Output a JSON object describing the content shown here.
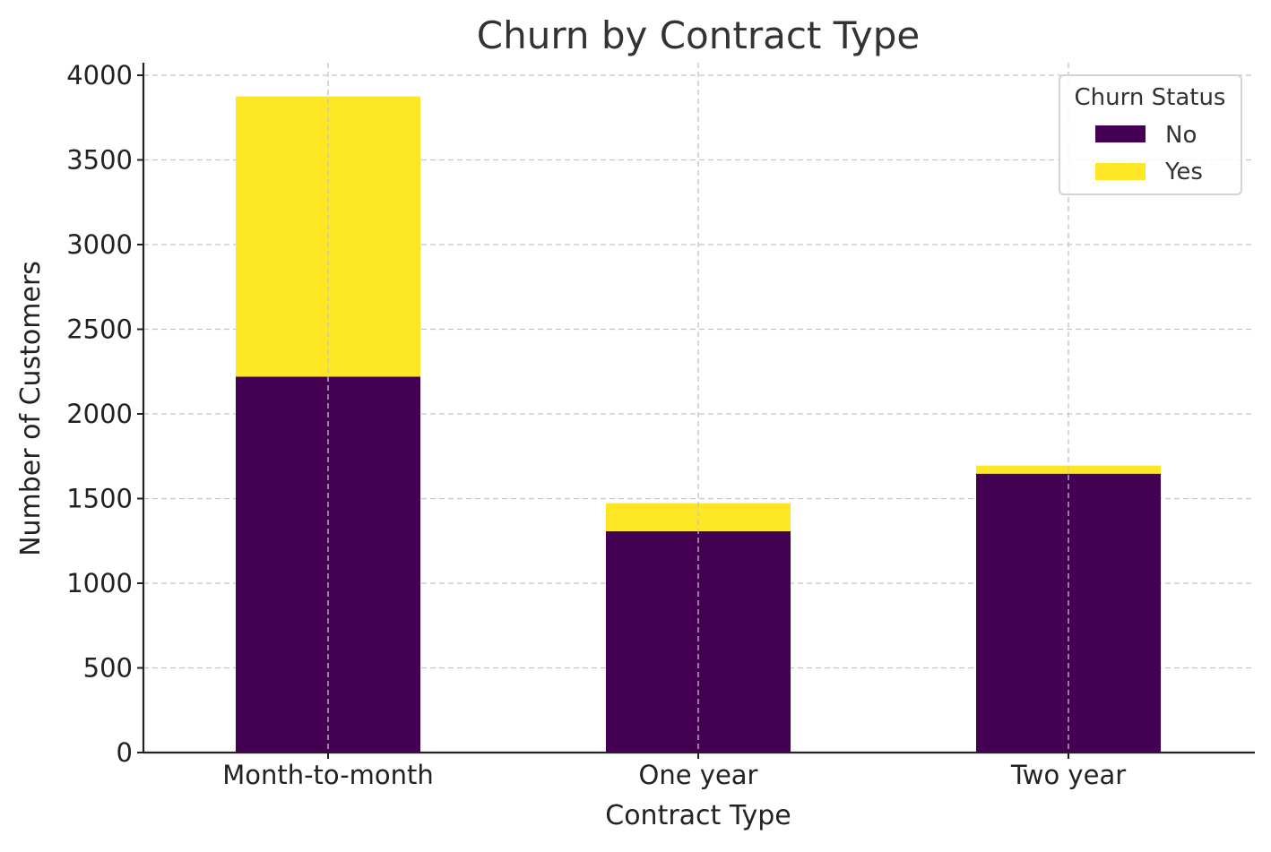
{
  "chart_data": {
    "type": "bar",
    "stacked": true,
    "title": "Churn by Contract Type",
    "xlabel": "Contract Type",
    "ylabel": "Number of Customers",
    "categories": [
      "Month-to-month",
      "One year",
      "Two year"
    ],
    "series": [
      {
        "name": "No",
        "color": "#440154",
        "values": [
          2220,
          1307,
          1647
        ]
      },
      {
        "name": "Yes",
        "color": "#fde725",
        "values": [
          1655,
          166,
          48
        ]
      }
    ],
    "ylim": [
      0,
      4000
    ],
    "yticks": [
      0,
      500,
      1000,
      1500,
      2000,
      2500,
      3000,
      3500,
      4000
    ],
    "grid": true,
    "legend": {
      "title": "Churn Status",
      "placement": "top-right"
    }
  }
}
